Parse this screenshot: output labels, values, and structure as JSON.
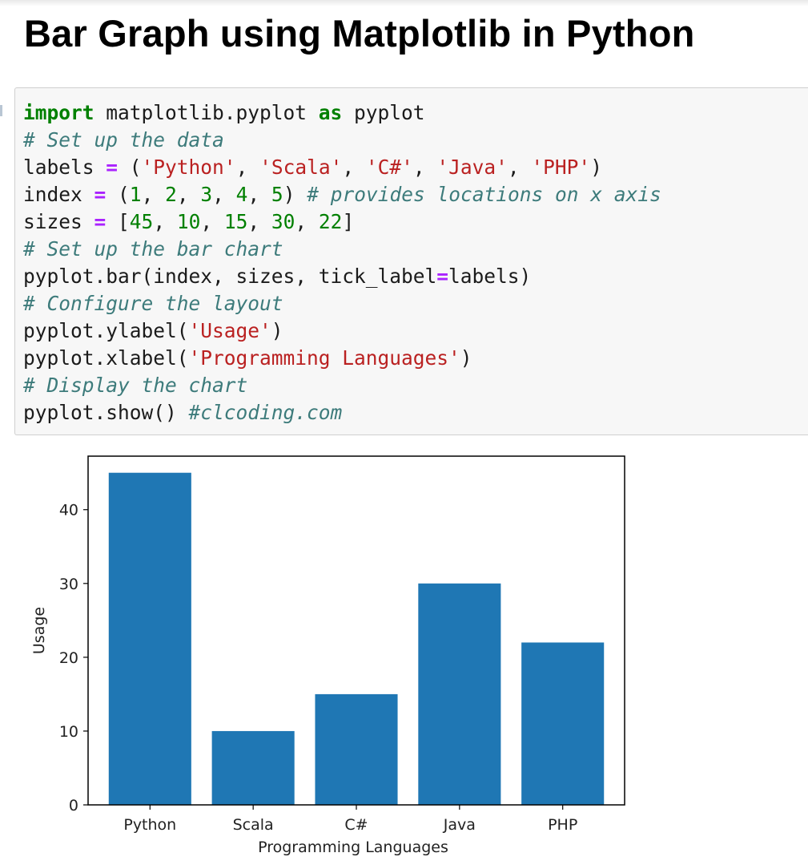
{
  "page": {
    "title": "Bar Graph using Matplotlib in Python"
  },
  "code_cell": {
    "lines": [
      [
        {
          "t": "import",
          "c": "kw"
        },
        {
          "t": " matplotlib.pyplot "
        },
        {
          "t": "as",
          "c": "kw"
        },
        {
          "t": " pyplot"
        }
      ],
      [
        {
          "t": "# Set up the data",
          "c": "cm"
        }
      ],
      [
        {
          "t": "labels "
        },
        {
          "t": "=",
          "c": "op"
        },
        {
          "t": " ("
        },
        {
          "t": "'Python'",
          "c": "st"
        },
        {
          "t": ", "
        },
        {
          "t": "'Scala'",
          "c": "st"
        },
        {
          "t": ", "
        },
        {
          "t": "'C#'",
          "c": "st"
        },
        {
          "t": ", "
        },
        {
          "t": "'Java'",
          "c": "st"
        },
        {
          "t": ", "
        },
        {
          "t": "'PHP'",
          "c": "st"
        },
        {
          "t": ")"
        }
      ],
      [
        {
          "t": "index "
        },
        {
          "t": "=",
          "c": "op"
        },
        {
          "t": " ("
        },
        {
          "t": "1",
          "c": "nm"
        },
        {
          "t": ", "
        },
        {
          "t": "2",
          "c": "nm"
        },
        {
          "t": ", "
        },
        {
          "t": "3",
          "c": "nm"
        },
        {
          "t": ", "
        },
        {
          "t": "4",
          "c": "nm"
        },
        {
          "t": ", "
        },
        {
          "t": "5",
          "c": "nm"
        },
        {
          "t": ") "
        },
        {
          "t": "# provides locations on x axis",
          "c": "cm"
        }
      ],
      [
        {
          "t": "sizes "
        },
        {
          "t": "=",
          "c": "op"
        },
        {
          "t": " ["
        },
        {
          "t": "45",
          "c": "nm"
        },
        {
          "t": ", "
        },
        {
          "t": "10",
          "c": "nm"
        },
        {
          "t": ", "
        },
        {
          "t": "15",
          "c": "nm"
        },
        {
          "t": ", "
        },
        {
          "t": "30",
          "c": "nm"
        },
        {
          "t": ", "
        },
        {
          "t": "22",
          "c": "nm"
        },
        {
          "t": "]"
        }
      ],
      [
        {
          "t": "# Set up the bar chart",
          "c": "cm"
        }
      ],
      [
        {
          "t": "pyplot.bar(index, sizes, tick_label"
        },
        {
          "t": "=",
          "c": "op"
        },
        {
          "t": "labels)"
        }
      ],
      [
        {
          "t": "# Configure the layout",
          "c": "cm"
        }
      ],
      [
        {
          "t": "pyplot.ylabel("
        },
        {
          "t": "'Usage'",
          "c": "st"
        },
        {
          "t": ")"
        }
      ],
      [
        {
          "t": "pyplot.xlabel("
        },
        {
          "t": "'Programming Languages'",
          "c": "st"
        },
        {
          "t": ")"
        }
      ],
      [
        {
          "t": "# Display the chart",
          "c": "cm"
        }
      ],
      [
        {
          "t": "pyplot.show() "
        },
        {
          "t": "#clcoding.com",
          "c": "cm"
        }
      ]
    ]
  },
  "chart_data": {
    "type": "bar",
    "categories": [
      "Python",
      "Scala",
      "C#",
      "Java",
      "PHP"
    ],
    "values": [
      45,
      10,
      15,
      30,
      22
    ],
    "title": "",
    "xlabel": "Programming Languages",
    "ylabel": "Usage",
    "yticks": [
      0,
      10,
      20,
      30,
      40
    ],
    "ylim": [
      0,
      47.25
    ],
    "grid": false,
    "bar_color": "#1f77b4"
  }
}
